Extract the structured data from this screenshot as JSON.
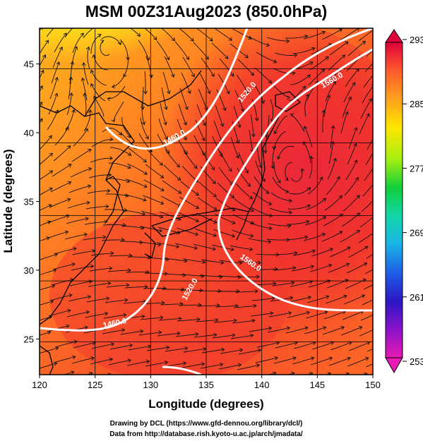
{
  "title": "MSM 00Z31Aug2023 (850.0hPa)",
  "credits": [
    "Drawing by DCL (https://www.gfd-dennou.org/library/dcl/)",
    "Data from http://database.rish.kyoto-u.ac.jp/arch/jmadata/"
  ],
  "map": {
    "xlabel": "Longitude (degrees)",
    "ylabel": "Latitude  (degrees)",
    "xlim": [
      120,
      150
    ],
    "ylim": [
      22.4,
      47.6
    ],
    "xticks": [
      "120",
      "125",
      "130",
      "135",
      "140",
      "145",
      "150"
    ],
    "yticks": [
      "25",
      "30",
      "35",
      "40",
      "45"
    ],
    "contour_labels": [
      "1460.0",
      "1520.0",
      "1560.0",
      "1520.0",
      "1460.0",
      "1560.0"
    ]
  },
  "colorbar": {
    "ticks": [
      "293",
      "285",
      "277",
      "269",
      "261",
      "253"
    ],
    "colors": [
      "#e0003a",
      "#ff5a2d",
      "#ffa11c",
      "#ffe600",
      "#a6ef11",
      "#12cf3a",
      "#12d6a8",
      "#1bb3e8",
      "#1e5fe6",
      "#2a17c5",
      "#8a12c8",
      "#e81ab3"
    ]
  }
}
